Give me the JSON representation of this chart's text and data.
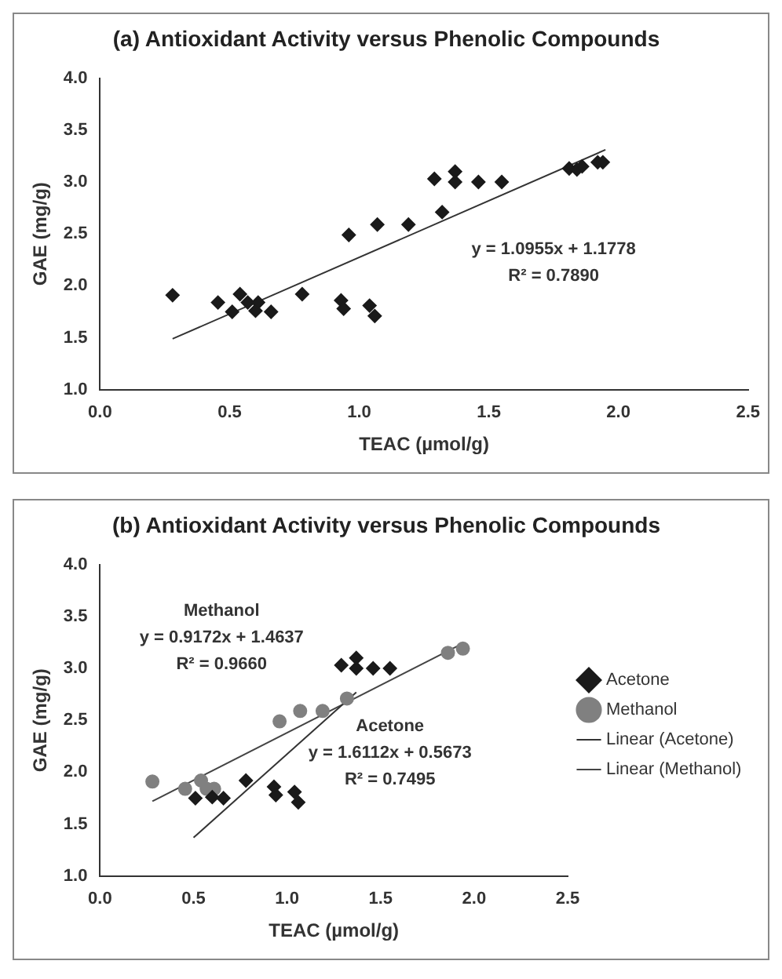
{
  "chart_data": [
    {
      "type": "scatter",
      "title": "(a) Antioxidant Activity versus Phenolic Compounds",
      "xlabel": "TEAC (µmol/g)",
      "ylabel": "GAE (mg/g)",
      "xlim": [
        0,
        2.5
      ],
      "ylim": [
        1,
        4
      ],
      "xticks": [
        {
          "value": 0,
          "label": "0.0"
        },
        {
          "value": 0.5,
          "label": "0.5"
        },
        {
          "value": 1,
          "label": "1.0"
        },
        {
          "value": 1.5,
          "label": "1.5"
        },
        {
          "value": 2,
          "label": "2.0"
        },
        {
          "value": 2.5,
          "label": "2.5"
        }
      ],
      "yticks": [
        {
          "value": 1,
          "label": "1.0"
        },
        {
          "value": 1.5,
          "label": "1.5"
        },
        {
          "value": 2,
          "label": "2.0"
        },
        {
          "value": 2.5,
          "label": "2.5"
        },
        {
          "value": 3,
          "label": "3.0"
        },
        {
          "value": 3.5,
          "label": "3.5"
        },
        {
          "value": 4,
          "label": "4.0"
        }
      ],
      "grid": false,
      "legend": false,
      "series": [
        {
          "color": "#1a1a1a",
          "marker": "diamond",
          "x": [
            0.28,
            0.455,
            0.51,
            0.54,
            0.57,
            0.6,
            0.61,
            0.66,
            0.78,
            0.93,
            0.94,
            0.96,
            1.04,
            1.06,
            1.07,
            1.19,
            1.29,
            1.32,
            1.37,
            1.37,
            1.46,
            1.55,
            1.81,
            1.84,
            1.86,
            1.92,
            1.94
          ],
          "values": [
            1.91,
            1.84,
            1.75,
            1.92,
            1.84,
            1.76,
            1.84,
            1.75,
            1.92,
            1.86,
            1.78,
            2.49,
            1.81,
            1.71,
            2.59,
            2.59,
            3.03,
            2.71,
            3.0,
            3.1,
            3.0,
            3.0,
            3.13,
            3.12,
            3.15,
            3.19,
            3.19
          ]
        },
        {
          "type": "line",
          "color": "#333333",
          "x": [
            0.28,
            1.95
          ],
          "values": [
            1.49,
            3.31
          ]
        }
      ],
      "annotations": [
        "y = 1.0955x + 1.1778",
        "R² = 0.7890"
      ]
    },
    {
      "type": "scatter",
      "title": "(b) Antioxidant Activity versus Phenolic Compounds",
      "xlabel": "TEAC (µmol/g)",
      "ylabel": "GAE (mg/g)",
      "xlim": [
        0,
        2.5
      ],
      "ylim": [
        1,
        4
      ],
      "xticks": [
        {
          "value": 0,
          "label": "0.0"
        },
        {
          "value": 0.5,
          "label": "0.5"
        },
        {
          "value": 1,
          "label": "1.0"
        },
        {
          "value": 1.5,
          "label": "1.5"
        },
        {
          "value": 2,
          "label": "2.0"
        },
        {
          "value": 2.5,
          "label": "2.5"
        }
      ],
      "yticks": [
        {
          "value": 1,
          "label": "1.0"
        },
        {
          "value": 1.5,
          "label": "1.5"
        },
        {
          "value": 2,
          "label": "2.0"
        },
        {
          "value": 2.5,
          "label": "2.5"
        },
        {
          "value": 3,
          "label": "3.0"
        },
        {
          "value": 3.5,
          "label": "3.5"
        },
        {
          "value": 4,
          "label": "4.0"
        }
      ],
      "grid": false,
      "legend": "right",
      "series": [
        {
          "name": "Acetone",
          "color": "#1a1a1a",
          "marker": "diamond",
          "x": [
            0.51,
            0.6,
            0.66,
            0.78,
            0.93,
            0.94,
            1.04,
            1.06,
            1.29,
            1.37,
            1.37,
            1.46,
            1.55
          ],
          "values": [
            1.75,
            1.76,
            1.75,
            1.92,
            1.86,
            1.78,
            1.81,
            1.71,
            3.03,
            3.0,
            3.1,
            3.0,
            3.0
          ]
        },
        {
          "name": "Methanol",
          "color": "#808080",
          "marker": "circle",
          "x": [
            0.28,
            0.455,
            0.54,
            0.57,
            0.61,
            0.96,
            1.07,
            1.19,
            1.32,
            1.81,
            1.84,
            1.86,
            1.92,
            1.94
          ],
          "values": [
            1.91,
            1.84,
            1.92,
            1.84,
            1.84,
            2.49,
            2.59,
            2.59,
            2.71,
            null,
            null,
            3.15,
            null,
            3.19
          ]
        },
        {
          "name": "Linear (Acetone)",
          "type": "line",
          "color": "#333333",
          "x": [
            0.5,
            1.37
          ],
          "values": [
            1.37,
            2.77
          ]
        },
        {
          "name": "Linear (Methanol)",
          "type": "line",
          "color": "#444444",
          "x": [
            0.28,
            1.94
          ],
          "values": [
            1.72,
            3.24
          ]
        }
      ],
      "annotations": [
        "Methanol",
        "y = 0.9172x + 1.4637",
        "R² = 0.9660",
        "Acetone",
        "y = 1.6112x + 0.5673",
        "R² = 0.7495"
      ]
    }
  ]
}
